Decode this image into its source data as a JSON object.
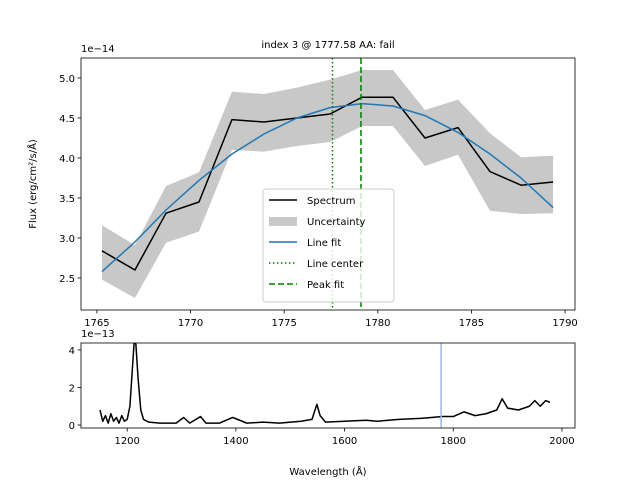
{
  "chart_data": [
    {
      "type": "line",
      "title": "index 3 @ 1777.58 AA: fail",
      "ylabel": "Flux (erg/cm²/s/Å)",
      "y_offset_label": "1e−14",
      "x": [
        1765.27,
        1767.03,
        1768.69,
        1770.45,
        1772.21,
        1773.92,
        1775.68,
        1777.45,
        1779.16,
        1780.81,
        1782.52,
        1784.28,
        1785.99,
        1787.65,
        1789.36
      ],
      "xlim": [
        1764.15,
        1790.53
      ],
      "ylim": [
        2.1,
        5.25
      ],
      "xticks": [
        1765,
        1770,
        1775,
        1780,
        1785,
        1790
      ],
      "yticks": [
        2.5,
        {
          "value": 3,
          "label": "3.0"
        },
        3.5,
        {
          "value": 4,
          "label": "4.0"
        },
        4.5,
        {
          "value": 5,
          "label": "5.0"
        }
      ],
      "legend": "lower center",
      "series": [
        {
          "name": "Spectrum",
          "color": "#000000",
          "values": [
            2.84,
            2.6,
            3.31,
            3.45,
            4.48,
            4.45,
            4.5,
            4.55,
            4.76,
            4.76,
            4.25,
            4.38,
            3.83,
            3.66,
            3.7
          ]
        },
        {
          "name": "Uncertainty",
          "color": "#c8c8c8",
          "kind": "band",
          "lower": [
            2.48,
            2.25,
            2.94,
            3.08,
            4.1,
            4.08,
            4.15,
            4.2,
            4.4,
            4.4,
            3.9,
            4.04,
            3.34,
            3.3,
            3.31
          ],
          "upper": [
            3.16,
            2.91,
            3.65,
            3.82,
            4.83,
            4.8,
            4.88,
            4.98,
            5.1,
            5.1,
            4.6,
            4.73,
            4.31,
            4.01,
            4.03
          ]
        },
        {
          "name": "Line fit",
          "color": "#1f77b4",
          "values": [
            2.58,
            2.95,
            3.35,
            3.72,
            4.05,
            4.3,
            4.5,
            4.63,
            4.68,
            4.65,
            4.53,
            4.32,
            4.05,
            3.75,
            3.38
          ]
        },
        {
          "name": "Line center",
          "color": "#008000",
          "kind": "vline",
          "linestyle": "dotted",
          "x": 1777.58
        },
        {
          "name": "Peak fit",
          "color": "#008000",
          "kind": "vline",
          "linestyle": "dashed",
          "x": 1779.1
        }
      ]
    },
    {
      "type": "line",
      "xlabel": "Wavelength (Å)",
      "y_offset_label": "1e−13",
      "x": [
        1150,
        1155,
        1160,
        1165,
        1170,
        1175,
        1180,
        1185,
        1190,
        1195,
        1200,
        1205,
        1210,
        1213,
        1216,
        1220,
        1225,
        1230,
        1240,
        1260,
        1290,
        1304,
        1315,
        1335,
        1345,
        1370,
        1394,
        1403,
        1420,
        1450,
        1480,
        1520,
        1540,
        1549,
        1555,
        1565,
        1600,
        1640,
        1660,
        1700,
        1740,
        1760,
        1780,
        1800,
        1820,
        1840,
        1860,
        1880,
        1890,
        1900,
        1920,
        1940,
        1950,
        1960,
        1970,
        1978
      ],
      "xlim": [
        1115,
        2024
      ],
      "ylim": [
        -0.16,
        4.37
      ],
      "xticks": [
        1200,
        1400,
        1600,
        1800,
        2000
      ],
      "yticks": [
        0,
        2,
        4
      ],
      "series": [
        {
          "color": "#000000",
          "values": [
            0.8,
            0.2,
            0.5,
            0.1,
            0.6,
            0.2,
            0.4,
            0.1,
            0.5,
            0.2,
            0.3,
            1.0,
            3.2,
            4.5,
            4.3,
            2.5,
            0.8,
            0.3,
            0.15,
            0.1,
            0.1,
            0.4,
            0.1,
            0.45,
            0.1,
            0.1,
            0.4,
            0.3,
            0.1,
            0.15,
            0.1,
            0.2,
            0.3,
            1.1,
            0.5,
            0.15,
            0.2,
            0.25,
            0.2,
            0.3,
            0.35,
            0.4,
            0.45,
            0.45,
            0.7,
            0.5,
            0.6,
            0.8,
            1.4,
            0.9,
            0.8,
            1.0,
            1.3,
            1.0,
            1.3,
            1.2
          ]
        },
        {
          "color": "#9fb4ea",
          "kind": "vline",
          "x": 1777.58
        }
      ]
    }
  ]
}
